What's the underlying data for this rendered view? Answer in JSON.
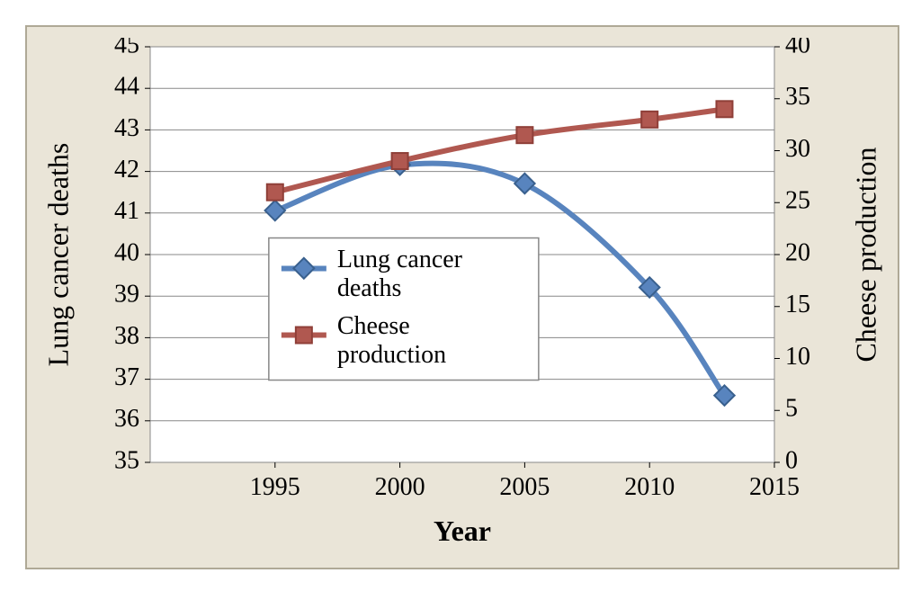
{
  "chart": {
    "type": "line",
    "background_color": "#eae5d8",
    "border_color": "#afa996",
    "plot_background": "#ffffff",
    "plot_border_color": "#888888",
    "grid_color": "#888888",
    "grid_width": 1,
    "font_family": "Georgia, Times New Roman, serif",
    "tick_fontsize": 28,
    "axis_title_fontsize": 32,
    "x": {
      "title": "Year",
      "title_bold": true,
      "lim": [
        1990,
        2015
      ],
      "tick_start": 1995,
      "tick_step": 5,
      "tick_count": 5
    },
    "y_left": {
      "title": "Lung cancer deaths",
      "lim": [
        35,
        45
      ],
      "tick_step": 1,
      "tick_count": 11
    },
    "y_right": {
      "title": "Cheese production",
      "lim": [
        0,
        40
      ],
      "tick_step": 5,
      "tick_count": 9
    },
    "series": {
      "lung": {
        "label": "Lung cancer deaths",
        "axis": "left",
        "color": "#5884be",
        "line_width": 6,
        "marker": "diamond",
        "marker_size": 14,
        "marker_border": "#39608e",
        "x": [
          1995,
          2000,
          2005,
          2010,
          2013
        ],
        "y": [
          41.05,
          42.15,
          41.7,
          39.2,
          36.6
        ]
      },
      "cheese": {
        "label": "Cheese production",
        "axis": "right",
        "color": "#b05850",
        "line_width": 6,
        "marker": "square",
        "marker_size": 18,
        "marker_border": "#8f3f38",
        "x": [
          1995,
          2000,
          2005,
          2010,
          2013
        ],
        "y": [
          26,
          29,
          31.5,
          33,
          34
        ]
      }
    },
    "legend": {
      "border_color": "#888888",
      "background": "#ffffff",
      "swatch_line_width": 6,
      "items": [
        "lung",
        "cheese"
      ]
    }
  }
}
